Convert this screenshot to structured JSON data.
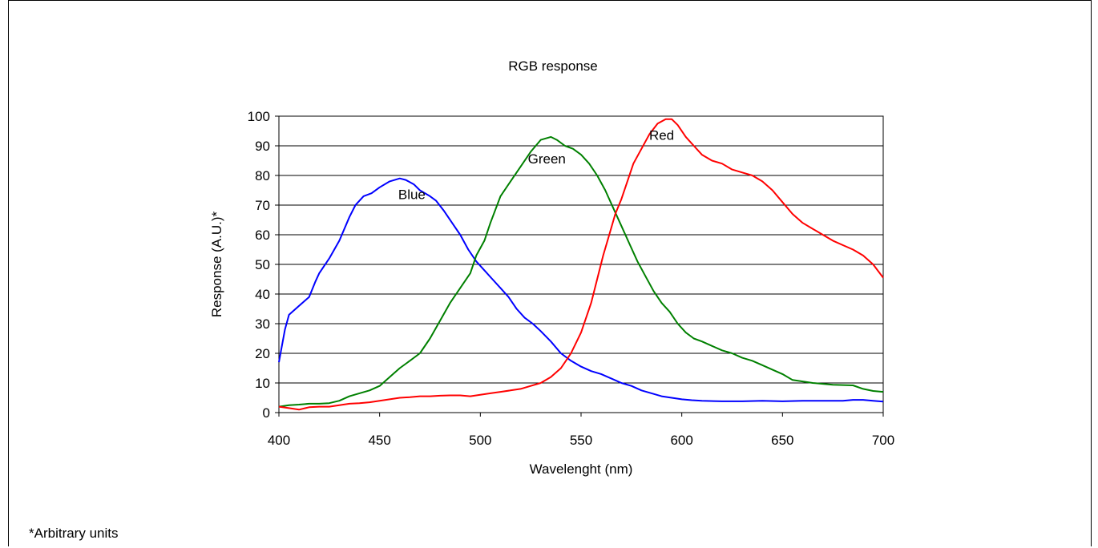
{
  "footnote": "*Arbitrary units",
  "chart_data": {
    "type": "line",
    "title": "RGB response",
    "xlabel": "Wavelenght (nm)",
    "ylabel": "Response (A.U.)*",
    "xlim": [
      400,
      700
    ],
    "ylim": [
      0,
      100
    ],
    "xticks": [
      400,
      450,
      500,
      550,
      600,
      650,
      700
    ],
    "yticks": [
      0,
      10,
      20,
      30,
      40,
      50,
      60,
      70,
      80,
      90,
      100
    ],
    "grid": "horizontal",
    "legend": "none",
    "series": [
      {
        "name": "Blue",
        "color": "#0000ff",
        "points": [
          [
            400,
            17
          ],
          [
            403,
            28
          ],
          [
            405,
            33
          ],
          [
            410,
            36
          ],
          [
            415,
            39
          ],
          [
            418,
            44
          ],
          [
            420,
            47
          ],
          [
            425,
            52
          ],
          [
            430,
            58
          ],
          [
            435,
            66
          ],
          [
            438,
            70
          ],
          [
            442,
            73
          ],
          [
            446,
            74
          ],
          [
            450,
            76
          ],
          [
            455,
            78
          ],
          [
            460,
            79
          ],
          [
            463,
            78.5
          ],
          [
            467,
            77
          ],
          [
            470,
            75
          ],
          [
            475,
            73
          ],
          [
            478,
            71.5
          ],
          [
            482,
            68
          ],
          [
            486,
            64
          ],
          [
            490,
            60
          ],
          [
            494,
            55
          ],
          [
            498,
            51
          ],
          [
            502,
            48
          ],
          [
            506,
            45
          ],
          [
            510,
            42
          ],
          [
            514,
            39
          ],
          [
            518,
            35
          ],
          [
            522,
            32
          ],
          [
            526,
            30
          ],
          [
            530,
            27.5
          ],
          [
            535,
            24
          ],
          [
            540,
            20
          ],
          [
            545,
            17.5
          ],
          [
            550,
            15.5
          ],
          [
            555,
            14
          ],
          [
            560,
            13
          ],
          [
            565,
            11.5
          ],
          [
            570,
            10
          ],
          [
            575,
            9
          ],
          [
            580,
            7.5
          ],
          [
            585,
            6.5
          ],
          [
            590,
            5.5
          ],
          [
            595,
            5
          ],
          [
            600,
            4.5
          ],
          [
            605,
            4.2
          ],
          [
            610,
            4
          ],
          [
            620,
            3.8
          ],
          [
            630,
            3.8
          ],
          [
            640,
            4
          ],
          [
            650,
            3.8
          ],
          [
            660,
            4
          ],
          [
            670,
            4
          ],
          [
            680,
            4
          ],
          [
            685,
            4.3
          ],
          [
            690,
            4.3
          ],
          [
            695,
            4
          ],
          [
            700,
            3.7
          ]
        ]
      },
      {
        "name": "Green",
        "color": "#008000",
        "points": [
          [
            400,
            2
          ],
          [
            405,
            2.5
          ],
          [
            410,
            2.7
          ],
          [
            415,
            3
          ],
          [
            420,
            3
          ],
          [
            425,
            3.2
          ],
          [
            430,
            4
          ],
          [
            435,
            5.5
          ],
          [
            440,
            6.5
          ],
          [
            445,
            7.5
          ],
          [
            450,
            9
          ],
          [
            455,
            12
          ],
          [
            460,
            15
          ],
          [
            465,
            17.5
          ],
          [
            470,
            20
          ],
          [
            475,
            25
          ],
          [
            480,
            31
          ],
          [
            485,
            37
          ],
          [
            490,
            42
          ],
          [
            495,
            47
          ],
          [
            498,
            53
          ],
          [
            502,
            58
          ],
          [
            505,
            64
          ],
          [
            510,
            73
          ],
          [
            515,
            78
          ],
          [
            520,
            83
          ],
          [
            525,
            88
          ],
          [
            530,
            92
          ],
          [
            535,
            93
          ],
          [
            538,
            92
          ],
          [
            542,
            90
          ],
          [
            546,
            89
          ],
          [
            550,
            87
          ],
          [
            554,
            84
          ],
          [
            558,
            80
          ],
          [
            562,
            75
          ],
          [
            566,
            69
          ],
          [
            570,
            63
          ],
          [
            574,
            57
          ],
          [
            578,
            51
          ],
          [
            582,
            46
          ],
          [
            586,
            41
          ],
          [
            590,
            37
          ],
          [
            594,
            34
          ],
          [
            598,
            30
          ],
          [
            602,
            27
          ],
          [
            606,
            25
          ],
          [
            610,
            24
          ],
          [
            615,
            22.5
          ],
          [
            620,
            21
          ],
          [
            625,
            20
          ],
          [
            630,
            18.5
          ],
          [
            635,
            17.5
          ],
          [
            640,
            16
          ],
          [
            645,
            14.5
          ],
          [
            650,
            13
          ],
          [
            655,
            11
          ],
          [
            660,
            10.5
          ],
          [
            665,
            10
          ],
          [
            670,
            9.7
          ],
          [
            675,
            9.4
          ],
          [
            680,
            9.3
          ],
          [
            685,
            9.2
          ],
          [
            690,
            8
          ],
          [
            695,
            7.3
          ],
          [
            700,
            7
          ]
        ]
      },
      {
        "name": "Red",
        "color": "#ff0000",
        "points": [
          [
            400,
            2
          ],
          [
            405,
            1.5
          ],
          [
            410,
            1
          ],
          [
            415,
            1.8
          ],
          [
            420,
            2
          ],
          [
            425,
            2
          ],
          [
            430,
            2.5
          ],
          [
            435,
            3
          ],
          [
            440,
            3.2
          ],
          [
            445,
            3.5
          ],
          [
            450,
            4
          ],
          [
            455,
            4.5
          ],
          [
            460,
            5
          ],
          [
            465,
            5.2
          ],
          [
            470,
            5.5
          ],
          [
            475,
            5.5
          ],
          [
            480,
            5.7
          ],
          [
            485,
            5.8
          ],
          [
            490,
            5.8
          ],
          [
            495,
            5.5
          ],
          [
            500,
            6
          ],
          [
            505,
            6.5
          ],
          [
            510,
            7
          ],
          [
            515,
            7.5
          ],
          [
            520,
            8
          ],
          [
            525,
            9
          ],
          [
            530,
            10
          ],
          [
            535,
            12
          ],
          [
            540,
            15
          ],
          [
            545,
            20
          ],
          [
            550,
            27
          ],
          [
            555,
            37
          ],
          [
            558,
            45
          ],
          [
            561,
            53
          ],
          [
            564,
            60
          ],
          [
            567,
            67
          ],
          [
            570,
            72
          ],
          [
            573,
            78
          ],
          [
            576,
            84
          ],
          [
            580,
            89
          ],
          [
            584,
            94
          ],
          [
            588,
            97.5
          ],
          [
            592,
            99
          ],
          [
            595,
            99
          ],
          [
            598,
            97
          ],
          [
            602,
            93
          ],
          [
            606,
            90
          ],
          [
            610,
            87
          ],
          [
            615,
            85
          ],
          [
            620,
            84
          ],
          [
            625,
            82
          ],
          [
            630,
            81
          ],
          [
            635,
            80
          ],
          [
            640,
            78
          ],
          [
            645,
            75
          ],
          [
            650,
            71
          ],
          [
            655,
            67
          ],
          [
            660,
            64
          ],
          [
            665,
            62
          ],
          [
            670,
            60
          ],
          [
            675,
            58
          ],
          [
            680,
            56.5
          ],
          [
            685,
            55
          ],
          [
            690,
            53
          ],
          [
            695,
            50
          ],
          [
            700,
            45.5
          ]
        ]
      }
    ],
    "annotations": [
      {
        "text": "Blue",
        "x": 466,
        "y": 72
      },
      {
        "text": "Green",
        "x": 533,
        "y": 84
      },
      {
        "text": "Red",
        "x": 590,
        "y": 92
      }
    ]
  }
}
